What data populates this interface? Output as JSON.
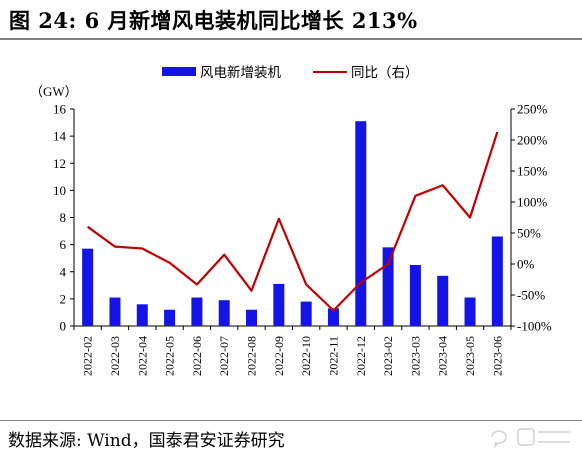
{
  "title": "图 24:  6 月新增风电装机同比增长 213%",
  "source": "数据来源:  Wind，国泰君安证券研究",
  "chart_data": {
    "type": "bar",
    "categories": [
      "2022-02",
      "2022-03",
      "2022-04",
      "2022-05",
      "2022-06",
      "2022-07",
      "2022-08",
      "2022-09",
      "2022-10",
      "2022-11",
      "2022-12",
      "2023-02",
      "2023-03",
      "2023-04",
      "2023-05",
      "2023-06"
    ],
    "series": [
      {
        "name": "风电新增装机",
        "type": "bar",
        "axis": "left",
        "color": "#1414e6",
        "values": [
          5.7,
          2.1,
          1.6,
          1.2,
          2.1,
          1.9,
          1.2,
          3.1,
          1.8,
          1.3,
          15.1,
          5.8,
          4.5,
          3.7,
          2.1,
          6.6
        ]
      },
      {
        "name": "同比（右）",
        "type": "line",
        "axis": "right",
        "color": "#c00000",
        "values": [
          60,
          28,
          25,
          2,
          -33,
          15,
          -43,
          73,
          -33,
          -75,
          -30,
          0,
          110,
          127,
          75,
          213
        ]
      }
    ],
    "ylabel_left": "（GW）",
    "ylim_left": [
      0,
      16
    ],
    "yticks_left": [
      "0",
      "2",
      "4",
      "6",
      "8",
      "10",
      "12",
      "14",
      "16"
    ],
    "ylim_right": [
      -100,
      250
    ],
    "yticks_right": [
      "-100%",
      "-50%",
      "0%",
      "50%",
      "100%",
      "150%",
      "200%",
      "250%"
    ],
    "legend_position": "top-center",
    "grid": false
  }
}
